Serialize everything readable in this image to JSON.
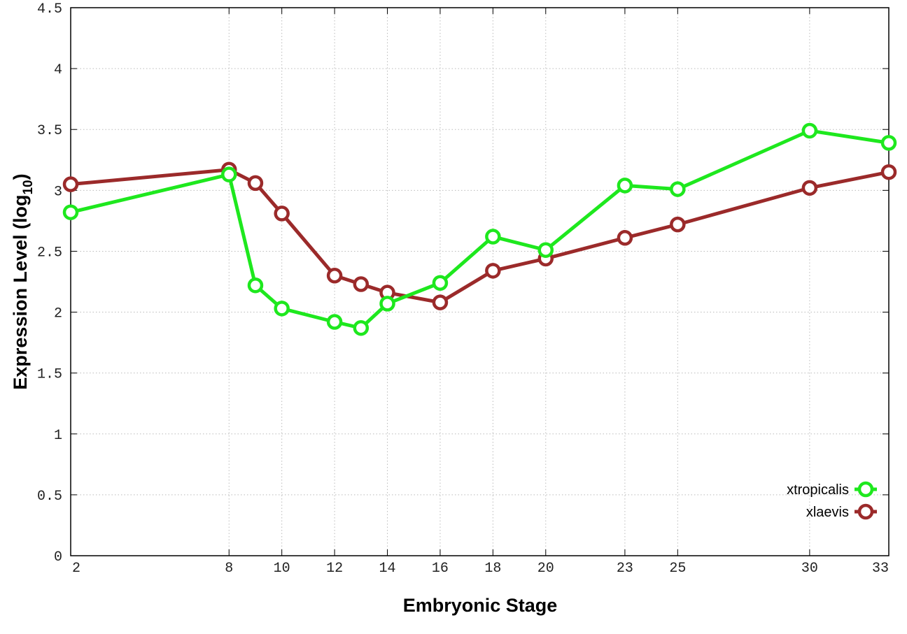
{
  "chart_data": {
    "type": "line",
    "title": "",
    "xlabel": "Embryonic Stage",
    "ylabel": "Expression Level (log",
    "ylabel_subscript": "10",
    "ylabel_suffix": ")",
    "x": [
      2,
      8,
      9,
      10,
      12,
      13,
      14,
      16,
      18,
      20,
      23,
      25,
      30,
      33
    ],
    "xlim": [
      2,
      33
    ],
    "ylim": [
      0,
      4.5
    ],
    "xticks": [
      "2",
      "8",
      "10",
      "12",
      "14",
      "16",
      "18",
      "20",
      "23",
      "25",
      "30",
      "33"
    ],
    "yticks": [
      "0",
      "0.5",
      "1",
      "1.5",
      "2",
      "2.5",
      "3",
      "3.5",
      "4",
      "4.5"
    ],
    "grid": true,
    "legend_position": "bottom-right",
    "series": [
      {
        "name": "xtropicalis",
        "color": "#1ee81e",
        "values": [
          2.82,
          3.13,
          2.22,
          2.03,
          1.92,
          1.87,
          2.07,
          2.24,
          2.62,
          2.51,
          3.04,
          3.01,
          3.49,
          3.39
        ]
      },
      {
        "name": "xlaevis",
        "color": "#9b2a2a",
        "values": [
          3.05,
          3.17,
          3.06,
          2.81,
          2.3,
          2.23,
          2.16,
          2.08,
          2.34,
          2.44,
          2.61,
          2.72,
          3.02,
          3.15
        ]
      }
    ]
  }
}
